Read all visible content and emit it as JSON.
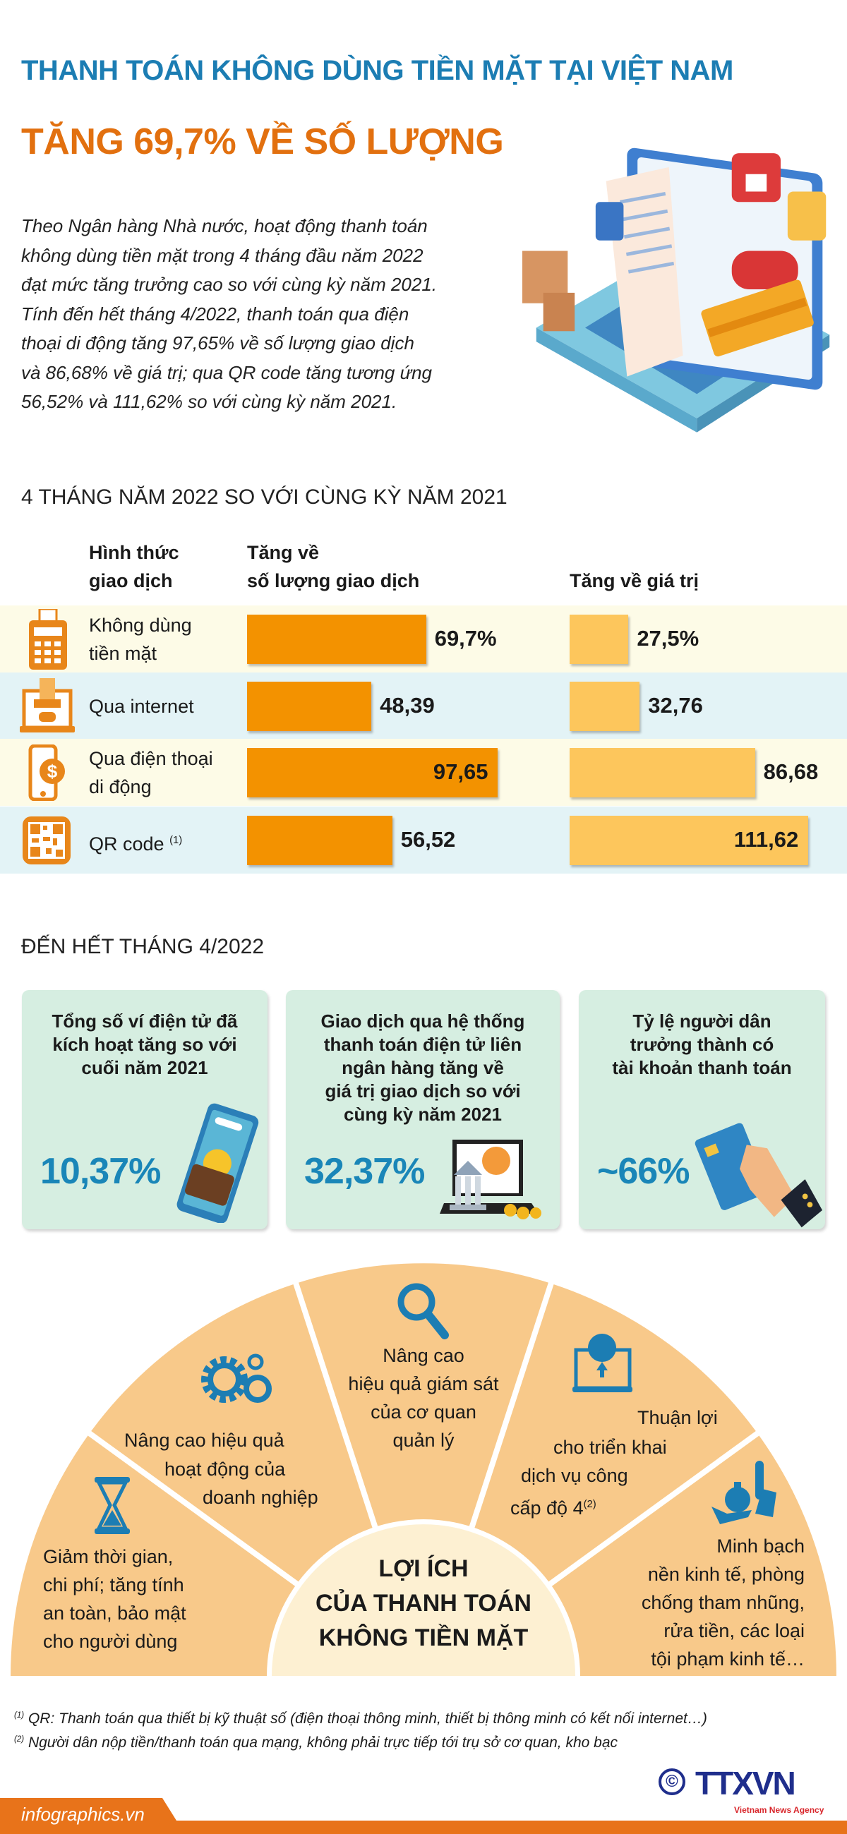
{
  "header": {
    "title_line1": "THANH TOÁN KHÔNG DÙNG TIỀN MẶT TẠI VIỆT NAM",
    "title_line2": "TĂNG 69,7% VỀ SỐ LƯỢNG",
    "intro_lines": [
      "Theo Ngân hàng Nhà nước, hoạt động thanh toán",
      "không dùng tiền mặt trong 4 tháng đầu năm 2022",
      "đạt mức tăng trưởng cao so với cùng kỳ năm 2021.",
      "Tính đến hết tháng 4/2022, thanh toán qua điện",
      "thoại di động tăng 97,65% về số lượng giao dịch",
      "và 86,68% về giá trị; qua QR code tăng tương ứng",
      "56,52% và 111,62% so với cùng kỳ năm 2021."
    ]
  },
  "comparison": {
    "heading": "4 THÁNG NĂM 2022 SO VỚI CÙNG KỲ NĂM 2021",
    "col_type": [
      "Hình thức",
      "giao dịch"
    ],
    "col_volume": [
      "Tăng về",
      "số lượng giao dịch"
    ],
    "col_value": "Tăng về giá trị",
    "colors": {
      "volume": "#f39200",
      "value": "#fdc65c"
    },
    "rows": [
      {
        "icon": "pos-terminal-icon",
        "label": [
          "Không dùng",
          "tiền mặt"
        ],
        "volume": 69.7,
        "volume_label": "69,7%",
        "value": 27.5,
        "value_label": "27,5%"
      },
      {
        "icon": "laptop-payment-icon",
        "label": [
          "Qua internet"
        ],
        "volume": 48.39,
        "volume_label": "48,39",
        "value": 32.76,
        "value_label": "32,76"
      },
      {
        "icon": "mobile-dollar-icon",
        "label": [
          "Qua điện thoại",
          "di động"
        ],
        "volume": 97.65,
        "volume_label": "97,65",
        "value": 86.68,
        "value_label": "86,68"
      },
      {
        "icon": "qr-code-icon",
        "label": [
          "QR code"
        ],
        "footnote": "(1)",
        "volume": 56.52,
        "volume_label": "56,52",
        "value": 111.62,
        "value_label": "111,62"
      }
    ]
  },
  "april": {
    "heading": "ĐẾN HẾT THÁNG 4/2022",
    "cards": [
      {
        "title": [
          "Tổng số ví điện tử đã",
          "kích hoạt tăng so với",
          "cuối năm 2021"
        ],
        "value": "10,37%",
        "icon": "e-wallet-phone-icon"
      },
      {
        "title": [
          "Giao dịch qua hệ thống",
          "thanh toán điện tử liên",
          "ngân hàng tăng về",
          "giá trị giao dịch so với",
          "cùng kỳ năm 2021"
        ],
        "value": "32,37%",
        "icon": "bank-laptop-icon"
      },
      {
        "title": [
          "Tỷ lệ người dân",
          "trưởng thành có",
          "tài khoản thanh toán"
        ],
        "value": "~66%",
        "icon": "hand-card-icon"
      }
    ]
  },
  "benefits": {
    "center": [
      "LỢI ÍCH",
      "CỦA THANH TOÁN",
      "KHÔNG TIỀN MẶT"
    ],
    "items": [
      {
        "icon": "hourglass-icon",
        "lines": [
          "Giảm thời gian,",
          "chi phí; tăng tính",
          "an toàn, bảo mật",
          "cho người dùng"
        ]
      },
      {
        "icon": "gears-icon",
        "lines": [
          "Nâng cao hiệu quả",
          "hoạt động của",
          "doanh nghiệp"
        ]
      },
      {
        "icon": "magnifier-icon",
        "lines": [
          "Nâng cao",
          "hiệu quả giám sát",
          "của cơ quan",
          "quản lý"
        ]
      },
      {
        "icon": "globe-laptop-icon",
        "lines": [
          "Thuận lợi",
          "cho triển khai",
          "dịch vụ công",
          "cấp độ 4"
        ],
        "footnote": "(2)"
      },
      {
        "icon": "money-hand-icon",
        "lines": [
          "Minh bạch",
          "nền kinh tế, phòng",
          "chống tham nhũng,",
          "rửa tiền, các loại",
          "tội phạm kinh tế…"
        ]
      }
    ],
    "colors": {
      "sector": "#f8c98a",
      "center": "#fdf0d2",
      "icon": "#1c7db3"
    }
  },
  "footnotes": [
    {
      "mark": "(1)",
      "text": " QR: Thanh toán qua thiết bị kỹ thuật số (điện thoại thông minh, thiết bị thông minh có kết nối internet…)"
    },
    {
      "mark": "(2)",
      "text": " Người dân nộp tiền/thanh toán qua mạng, không phải trực tiếp tới trụ sở cơ quan, kho bạc"
    }
  ],
  "footer": {
    "site": "infographics.vn",
    "logo": "TTXVN",
    "logo_sub": "Vietnam News Agency",
    "color": "#e8731a"
  }
}
